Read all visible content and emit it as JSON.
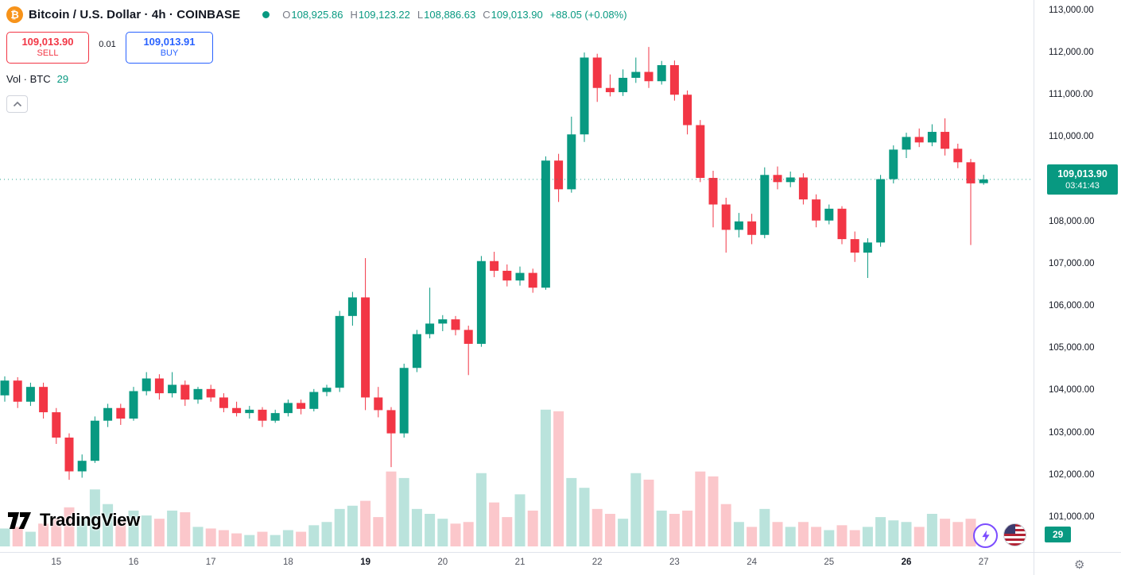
{
  "header": {
    "symbol_icon": "₿",
    "symbol_title": "Bitcoin / U.S. Dollar · 4h · COINBASE",
    "ohlc": {
      "o_label": "O",
      "o": "108,925.86",
      "h_label": "H",
      "h": "109,123.22",
      "l_label": "L",
      "l": "108,886.63",
      "c_label": "C",
      "c": "109,013.90",
      "change": "+88.05 (+0.08%)"
    },
    "sell": {
      "price": "109,013.90",
      "label": "SELL"
    },
    "spread": "0.01",
    "buy": {
      "price": "109,013.91",
      "label": "BUY"
    },
    "vol_label": "Vol · BTC",
    "vol_value": "29"
  },
  "logo": {
    "text": "TradingView"
  },
  "price_scale": {
    "ticks": [
      {
        "value": 113000,
        "label": "113,000.00"
      },
      {
        "value": 112000,
        "label": "112,000.00"
      },
      {
        "value": 111000,
        "label": "111,000.00"
      },
      {
        "value": 110000,
        "label": "110,000.00"
      },
      {
        "value": 109000,
        "label": "109,000.00"
      },
      {
        "value": 108000,
        "label": "108,000.00"
      },
      {
        "value": 107000,
        "label": "107,000.00"
      },
      {
        "value": 106000,
        "label": "106,000.00"
      },
      {
        "value": 105000,
        "label": "105,000.00"
      },
      {
        "value": 104000,
        "label": "104,000.00"
      },
      {
        "value": 103000,
        "label": "103,000.00"
      },
      {
        "value": 102000,
        "label": "102,000.00"
      },
      {
        "value": 101000,
        "label": "101,000.00"
      }
    ],
    "current": {
      "price": "109,013.90",
      "countdown": "03:41:43"
    },
    "volume_tag": "29"
  },
  "time_scale": {
    "labels": [
      {
        "index": 4,
        "label": "15",
        "bold": false
      },
      {
        "index": 10,
        "label": "16",
        "bold": false
      },
      {
        "index": 16,
        "label": "17",
        "bold": false
      },
      {
        "index": 22,
        "label": "18",
        "bold": false
      },
      {
        "index": 28,
        "label": "19",
        "bold": true
      },
      {
        "index": 34,
        "label": "20",
        "bold": false
      },
      {
        "index": 40,
        "label": "21",
        "bold": false
      },
      {
        "index": 46,
        "label": "22",
        "bold": false
      },
      {
        "index": 52,
        "label": "23",
        "bold": false
      },
      {
        "index": 58,
        "label": "24",
        "bold": false
      },
      {
        "index": 64,
        "label": "25",
        "bold": false
      },
      {
        "index": 70,
        "label": "26",
        "bold": true
      },
      {
        "index": 76,
        "label": "27",
        "bold": false
      }
    ]
  },
  "colors": {
    "up": "#089981",
    "down": "#f23645",
    "buy_blue": "#2962ff",
    "sell_red": "#f23645",
    "accent_orange": "#f7931a",
    "text_dark": "#131722",
    "text_gray": "#787b86",
    "axis_border": "#e0e3eb"
  },
  "chart_data": {
    "type": "candlestick",
    "title": "Bitcoin / U.S. Dollar",
    "interval": "4h",
    "exchange": "COINBASE",
    "current_price": 109013.9,
    "countdown": "03:41:43",
    "price_axis_range": [
      100200,
      113260
    ],
    "x_axis_days": [
      "15",
      "16",
      "17",
      "18",
      "19",
      "20",
      "21",
      "22",
      "23",
      "24",
      "25",
      "26",
      "27"
    ],
    "candles_format": [
      "open",
      "high",
      "low",
      "close",
      "volume"
    ],
    "candles": [
      [
        103900,
        104350,
        103750,
        104250,
        55
      ],
      [
        104250,
        104330,
        103600,
        103750,
        60
      ],
      [
        103750,
        104200,
        103650,
        104100,
        45
      ],
      [
        104100,
        104200,
        103350,
        103500,
        70
      ],
      [
        103500,
        103600,
        102750,
        102900,
        85
      ],
      [
        102900,
        103000,
        101900,
        102100,
        120
      ],
      [
        102100,
        102500,
        101950,
        102350,
        90
      ],
      [
        102350,
        103400,
        102300,
        103300,
        175
      ],
      [
        103300,
        103700,
        103150,
        103600,
        130
      ],
      [
        103600,
        103700,
        103200,
        103350,
        80
      ],
      [
        103350,
        104100,
        103300,
        104000,
        110
      ],
      [
        104000,
        104450,
        103900,
        104300,
        95
      ],
      [
        104300,
        104400,
        103800,
        103950,
        85
      ],
      [
        103950,
        104450,
        103850,
        104150,
        110
      ],
      [
        104150,
        104250,
        103650,
        103800,
        105
      ],
      [
        103800,
        104100,
        103700,
        104050,
        60
      ],
      [
        104050,
        104150,
        103750,
        103850,
        55
      ],
      [
        103850,
        103950,
        103500,
        103600,
        50
      ],
      [
        103600,
        103750,
        103400,
        103480,
        40
      ],
      [
        103480,
        103650,
        103350,
        103560,
        35
      ],
      [
        103560,
        103620,
        103150,
        103300,
        45
      ],
      [
        103300,
        103560,
        103250,
        103480,
        35
      ],
      [
        103480,
        103800,
        103400,
        103720,
        50
      ],
      [
        103720,
        103800,
        103450,
        103580,
        45
      ],
      [
        103580,
        104050,
        103520,
        103980,
        65
      ],
      [
        103980,
        104150,
        103880,
        104080,
        75
      ],
      [
        104080,
        105900,
        103980,
        105780,
        115
      ],
      [
        105780,
        106350,
        105550,
        106220,
        125
      ],
      [
        106220,
        107150,
        103550,
        103850,
        140
      ],
      [
        103850,
        104100,
        103380,
        103550,
        90
      ],
      [
        103550,
        103620,
        102200,
        103000,
        230
      ],
      [
        103000,
        104650,
        102900,
        104550,
        210
      ],
      [
        104550,
        105450,
        104450,
        105350,
        115
      ],
      [
        105350,
        106450,
        105250,
        105600,
        100
      ],
      [
        105600,
        105800,
        105420,
        105700,
        85
      ],
      [
        105700,
        105780,
        105320,
        105450,
        70
      ],
      [
        105450,
        105550,
        104380,
        105120,
        75
      ],
      [
        105120,
        107200,
        105050,
        107080,
        225
      ],
      [
        107080,
        107300,
        106700,
        106850,
        135
      ],
      [
        106850,
        107000,
        106480,
        106620,
        90
      ],
      [
        106620,
        106950,
        106500,
        106800,
        160
      ],
      [
        106800,
        106900,
        106330,
        106450,
        110
      ],
      [
        106450,
        109560,
        106400,
        109460,
        420
      ],
      [
        109460,
        109620,
        108480,
        108780,
        415
      ],
      [
        108780,
        110500,
        108700,
        110080,
        210
      ],
      [
        110080,
        112020,
        109900,
        111900,
        180
      ],
      [
        111900,
        111990,
        110850,
        111180,
        115
      ],
      [
        111180,
        111500,
        110980,
        111080,
        100
      ],
      [
        111080,
        111620,
        110990,
        111420,
        85
      ],
      [
        111420,
        111900,
        111300,
        111560,
        225
      ],
      [
        111560,
        112150,
        111180,
        111340,
        205
      ],
      [
        111340,
        111820,
        111260,
        111720,
        110
      ],
      [
        111720,
        111830,
        110880,
        111020,
        100
      ],
      [
        111020,
        111120,
        110080,
        110300,
        110
      ],
      [
        110300,
        110420,
        108950,
        109050,
        230
      ],
      [
        109050,
        109220,
        107880,
        108420,
        215
      ],
      [
        108420,
        108580,
        107280,
        107820,
        130
      ],
      [
        107820,
        108220,
        107640,
        108020,
        75
      ],
      [
        108020,
        108200,
        107480,
        107700,
        60
      ],
      [
        107700,
        109300,
        107620,
        109120,
        115
      ],
      [
        109120,
        109320,
        108780,
        108950,
        75
      ],
      [
        108950,
        109200,
        108830,
        109060,
        60
      ],
      [
        109060,
        109160,
        108420,
        108540,
        75
      ],
      [
        108540,
        108660,
        107880,
        108040,
        60
      ],
      [
        108040,
        108420,
        107950,
        108320,
        50
      ],
      [
        108320,
        108380,
        107480,
        107600,
        65
      ],
      [
        107600,
        107780,
        107060,
        107280,
        50
      ],
      [
        107280,
        107620,
        106680,
        107520,
        60
      ],
      [
        107520,
        109120,
        107420,
        109020,
        90
      ],
      [
        109020,
        109820,
        108920,
        109720,
        80
      ],
      [
        109720,
        110120,
        109520,
        110020,
        75
      ],
      [
        110020,
        110220,
        109780,
        109890,
        60
      ],
      [
        109890,
        110320,
        109800,
        110140,
        100
      ],
      [
        110140,
        110460,
        109580,
        109740,
        85
      ],
      [
        109740,
        109860,
        109280,
        109420,
        75
      ],
      [
        109420,
        109500,
        107460,
        108920,
        85
      ],
      [
        108925.86,
        109123.22,
        108886.63,
        109013.9,
        29
      ]
    ]
  }
}
